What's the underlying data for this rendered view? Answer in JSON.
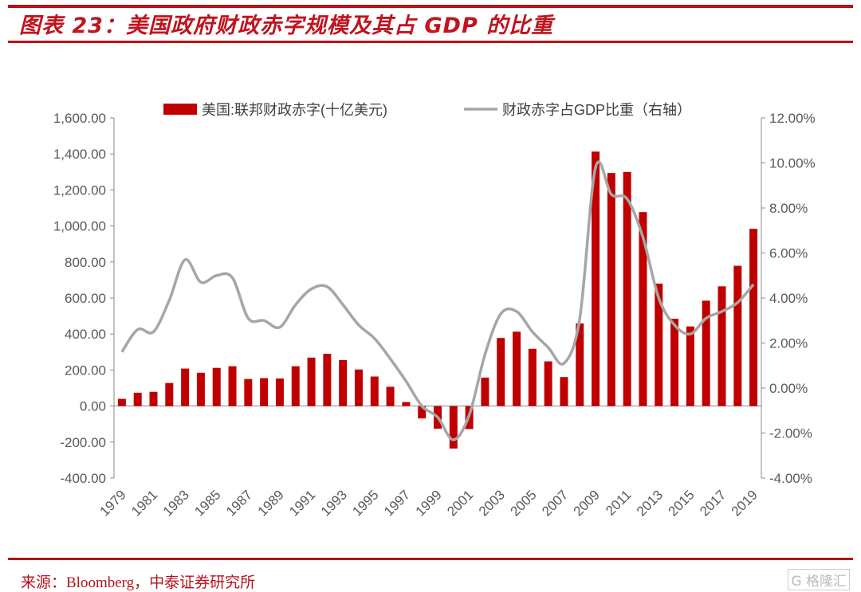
{
  "title": "图表 23：美国政府财政赤字规模及其占 GDP 的比重",
  "source": "来源：Bloomberg，中泰证券研究所",
  "watermark": "格隆汇",
  "colors": {
    "bar": "#c00000",
    "line": "#a6a6a6",
    "accent": "#b5121b"
  },
  "chart_data": {
    "type": "bar+line",
    "categories": [
      "1979",
      "1980",
      "1981",
      "1982",
      "1983",
      "1984",
      "1985",
      "1986",
      "1987",
      "1988",
      "1989",
      "1990",
      "1991",
      "1992",
      "1993",
      "1994",
      "1995",
      "1996",
      "1997",
      "1998",
      "1999",
      "2000",
      "2001",
      "2002",
      "2003",
      "2004",
      "2005",
      "2006",
      "2007",
      "2008",
      "2009",
      "2010",
      "2011",
      "2012",
      "2013",
      "2014",
      "2015",
      "2016",
      "2017",
      "2018",
      "2019"
    ],
    "x_tick_labels": [
      "1979",
      "1981",
      "1983",
      "1985",
      "1987",
      "1989",
      "1991",
      "1993",
      "1995",
      "1997",
      "1999",
      "2001",
      "2003",
      "2005",
      "2007",
      "2009",
      "2011",
      "2013",
      "2015",
      "2017",
      "2019"
    ],
    "series": [
      {
        "name": "美国:联邦财政赤字(十亿美元)",
        "type": "bar",
        "axis": "left",
        "values": [
          40,
          74,
          79,
          128,
          208,
          185,
          212,
          221,
          150,
          155,
          153,
          221,
          269,
          290,
          255,
          203,
          164,
          107,
          22,
          -69,
          -126,
          -236,
          -128,
          158,
          378,
          413,
          318,
          248,
          161,
          459,
          1413,
          1294,
          1300,
          1077,
          680,
          485,
          442,
          585,
          665,
          779,
          984
        ]
      },
      {
        "name": "财政赤字占GDP比重（右轴）",
        "type": "line",
        "axis": "right",
        "values": [
          1.6,
          2.6,
          2.5,
          3.9,
          5.7,
          4.7,
          5.0,
          4.9,
          3.1,
          3.0,
          2.7,
          3.7,
          4.4,
          4.5,
          3.7,
          2.8,
          2.2,
          1.3,
          0.3,
          -0.8,
          -1.3,
          -2.3,
          -1.2,
          1.5,
          3.3,
          3.4,
          2.5,
          1.8,
          1.1,
          3.1,
          9.8,
          8.6,
          8.4,
          6.7,
          4.0,
          2.8,
          2.4,
          3.1,
          3.4,
          3.8,
          4.6
        ]
      }
    ],
    "ylim_left": [
      -400,
      1600
    ],
    "yticks_left": [
      "1,600.00",
      "1,400.00",
      "1,200.00",
      "1,000.00",
      "800.00",
      "600.00",
      "400.00",
      "200.00",
      "0.00",
      "-200.00",
      "-400.00"
    ],
    "ylim_right": [
      -4,
      12
    ],
    "yticks_right": [
      "12.00%",
      "10.00%",
      "8.00%",
      "6.00%",
      "4.00%",
      "2.00%",
      "0.00%",
      "-2.00%",
      "-4.00%"
    ],
    "legend_position": "top",
    "grid": false
  }
}
